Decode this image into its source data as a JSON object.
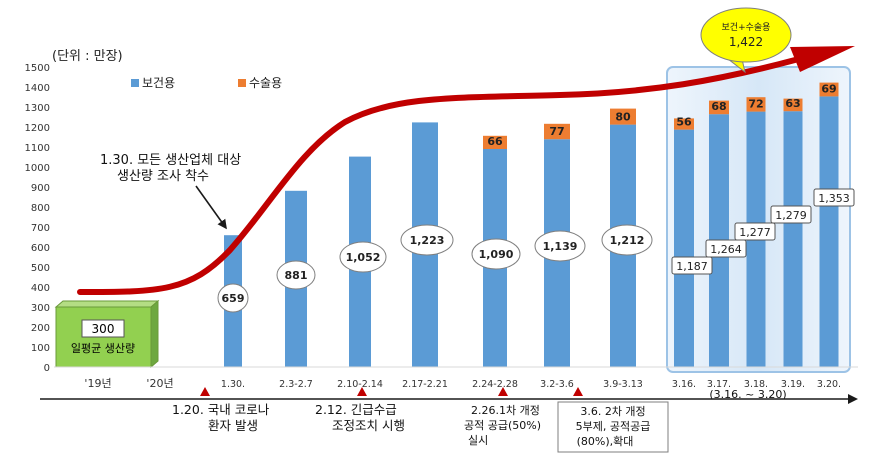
{
  "chart_data": {
    "type": "bar",
    "unit_label": "(단위 : 만장)",
    "ylim": [
      0,
      1500
    ],
    "ytick_step": 100,
    "legend": {
      "placement": "top-left",
      "entries": [
        {
          "name": "보건용",
          "color": "#5b9bd5"
        },
        {
          "name": "수술용",
          "color": "#ed7d31"
        }
      ]
    },
    "categories": [
      "'19년",
      "'20년",
      "1.30.",
      "2.3-2.7",
      "2.10-2.14",
      "2.17-2.21",
      "2.24-2.28",
      "3.2-3.6",
      "3.9-3.13",
      "3.16.",
      "3.17.",
      "3.18.",
      "3.19.",
      "3.20."
    ],
    "series": [
      {
        "name": "보건용",
        "color": "#5b9bd5",
        "values": [
          null,
          null,
          659,
          881,
          1052,
          1223,
          1090,
          1139,
          1212,
          1187,
          1264,
          1277,
          1279,
          1353
        ]
      },
      {
        "name": "수술용",
        "color": "#ed7d31",
        "values": [
          null,
          null,
          null,
          null,
          null,
          null,
          66,
          77,
          80,
          56,
          68,
          72,
          63,
          69
        ]
      }
    ],
    "value_labels": [
      "659",
      "881",
      "1,052",
      "1,223",
      "1,090",
      "1,139",
      "1,212",
      "1,187",
      "1,264",
      "1,277",
      "1,279",
      "1,353"
    ],
    "baseline": {
      "value": 300,
      "value_label": "300",
      "label": "일평균 생산량",
      "color": "#92d050"
    },
    "callout": {
      "title": "보건+수술용",
      "value": "1,422",
      "color": "#ffff00"
    },
    "period_label": "(3.16. ~ 3.20)",
    "annotation": {
      "line1": "1.30. 모든 생산업체 대상",
      "line2": "생산량 조사 착수"
    },
    "events": [
      {
        "line1": "1.20. 국내 코로나",
        "line2": "환자 발생"
      },
      {
        "line1": "2.12. 긴급수급",
        "line2": "조정조치 시행"
      },
      {
        "line1": "2.26.1차 개정",
        "line2": "공적 공급(50%)",
        "line3": "실시"
      },
      {
        "line1": "3.6. 2차 개정",
        "line2": "5부제, 공적공급",
        "line3": "(80%),확대"
      }
    ],
    "grid": false,
    "colors": {
      "trend": "#c00000",
      "marker": "#c00000",
      "highlight_border": "#9dc3e6",
      "highlight_fill": "#deebf7"
    }
  }
}
